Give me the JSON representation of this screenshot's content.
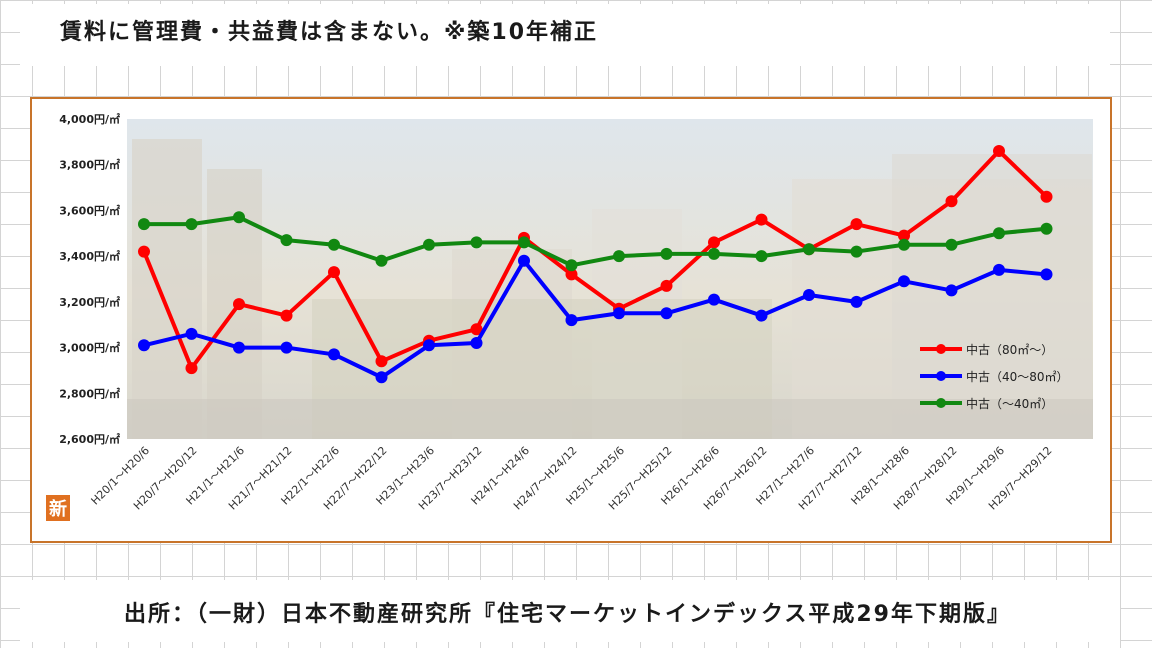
{
  "header": {
    "note": "賃料に管理費・共益費は含まない。※築10年補正"
  },
  "footer": {
    "source": "出所：（一財）日本不動産研究所『住宅マーケットインデックス平成29年下期版』"
  },
  "badge": {
    "text": "新"
  },
  "colors": {
    "frame": "#c8742a",
    "grid": "#d4d4d4",
    "badge": "#e07020"
  },
  "chart_data": {
    "type": "line",
    "title": "",
    "xlabel": "",
    "ylabel": "",
    "ylim": [
      2600,
      4000
    ],
    "yticks": [
      2600,
      2800,
      3000,
      3200,
      3400,
      3600,
      3800,
      4000
    ],
    "ytick_suffix": "円/㎡",
    "legend": "right",
    "grid": false,
    "categories": [
      "H20/1～H20/6",
      "H20/7～H20/12",
      "H21/1～H21/6",
      "H21/7～H21/12",
      "H22/1～H22/6",
      "H22/7～H22/12",
      "H23/1～H23/6",
      "H23/7～H23/12",
      "H24/1～H24/6",
      "H24/7～H24/12",
      "H25/1～H25/6",
      "H25/7～H25/12",
      "H26/1～H26/6",
      "H26/7～H26/12",
      "H27/1～H27/6",
      "H27/7～H27/12",
      "H28/1～H28/6",
      "H28/7～H28/12",
      "H29/1～H29/6",
      "H29/7～H29/12"
    ],
    "series": [
      {
        "name": "中古（80㎡～）",
        "color": "#ff0000",
        "values": [
          3420,
          2910,
          3190,
          3140,
          3330,
          2940,
          3030,
          3080,
          3480,
          3320,
          3170,
          3270,
          3460,
          3560,
          3430,
          3540,
          3490,
          3640,
          3860,
          3660
        ]
      },
      {
        "name": "中古（40～80㎡）",
        "color": "#0000ff",
        "values": [
          3010,
          3060,
          3000,
          3000,
          2970,
          2870,
          3010,
          3020,
          3380,
          3120,
          3150,
          3150,
          3210,
          3140,
          3230,
          3200,
          3290,
          3250,
          3340,
          3320
        ]
      },
      {
        "name": "中古（～40㎡）",
        "color": "#118811",
        "values": [
          3540,
          3540,
          3570,
          3470,
          3450,
          3380,
          3450,
          3460,
          3460,
          3360,
          3400,
          3410,
          3410,
          3400,
          3430,
          3420,
          3450,
          3450,
          3500,
          3520
        ]
      }
    ]
  }
}
